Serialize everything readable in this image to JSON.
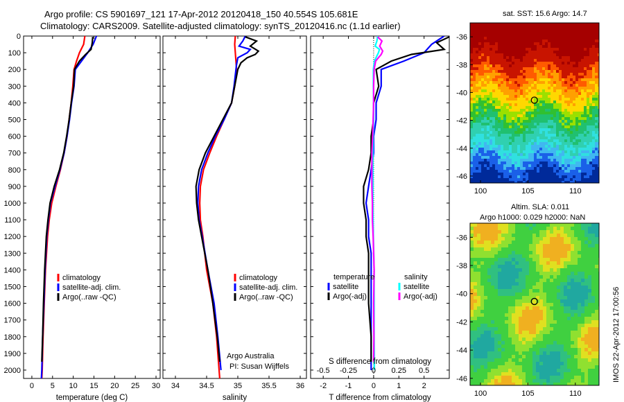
{
  "title_line1": "Argo profile: CS 5901697_121 17-Apr-2012 20120418_150 40.554S 105.681E",
  "title_line2": "Climatology: CARS2009. Satellite-adjusted climatology: synTS_20120416.nc (1.1d earlier)",
  "side_stamp": "IMOS 22-Apr-2012 17:00:56",
  "colors": {
    "climatology": "#ff0000",
    "satellite": "#0000ff",
    "argo": "#000000",
    "sal_satellite": "#00ffff",
    "sal_argo": "#ff00ff"
  },
  "chart_data": [
    {
      "type": "line",
      "name": "temperature",
      "xlabel": "temperature (deg C)",
      "ylabel": "",
      "xlim": [
        -2,
        31
      ],
      "ylim": [
        0,
        2050
      ],
      "y_reversed": true,
      "xticks": [
        0,
        5,
        10,
        15,
        20,
        25,
        30
      ],
      "yticks": [
        0,
        100,
        200,
        300,
        400,
        500,
        600,
        700,
        800,
        900,
        1000,
        1100,
        1200,
        1300,
        1400,
        1500,
        1600,
        1700,
        1800,
        1900,
        2000
      ],
      "legend": [
        "climatology",
        "satellite-adj. clim.",
        "Argo(..raw -QC)"
      ],
      "series": [
        {
          "key": "climatology",
          "depth": [
            0,
            50,
            100,
            150,
            200,
            300,
            400,
            500,
            600,
            700,
            800,
            900,
            1000,
            1100,
            1200,
            1400,
            1600,
            1800,
            2000,
            2050
          ],
          "values": [
            12.8,
            12.5,
            11.5,
            10.8,
            10.2,
            9.9,
            9.5,
            9.0,
            8.5,
            7.8,
            6.9,
            5.8,
            4.8,
            4.2,
            3.8,
            3.3,
            3.0,
            2.7,
            2.5,
            2.4
          ]
        },
        {
          "key": "satellite",
          "depth": [
            0,
            50,
            100,
            150,
            200,
            300,
            400,
            500,
            600,
            700,
            800,
            900,
            1000,
            1100,
            1200,
            1400,
            1600,
            1800,
            2000,
            2050
          ],
          "values": [
            15.6,
            14.8,
            13.5,
            12.0,
            10.5,
            10.2,
            9.6,
            9.1,
            8.5,
            7.8,
            6.8,
            5.6,
            4.5,
            4.0,
            3.6,
            3.2,
            2.9,
            2.6,
            2.4,
            2.3
          ]
        },
        {
          "key": "argo",
          "depth": [
            5,
            40,
            80,
            110,
            150,
            200,
            300,
            400,
            500,
            600,
            700,
            800,
            900,
            1000,
            1100,
            1200,
            1400,
            1600,
            1800,
            1950
          ],
          "values": [
            14.7,
            14.6,
            14.3,
            13.0,
            11.5,
            10.3,
            10.1,
            9.5,
            9.0,
            8.4,
            7.7,
            6.7,
            5.4,
            4.4,
            3.9,
            3.5,
            3.1,
            2.8,
            2.6,
            2.4
          ]
        }
      ]
    },
    {
      "type": "line",
      "name": "salinity",
      "xlabel": "salinity",
      "ylabel": "",
      "xlim": [
        33.8,
        36.1
      ],
      "ylim": [
        0,
        2050
      ],
      "y_reversed": true,
      "xticks": [
        34,
        34.5,
        35,
        35.5,
        36
      ],
      "legend": [
        "climatology",
        "satellite-adj. clim.",
        "Argo(..raw -QC)"
      ],
      "annotation": [
        "Argo Australia",
        "PI: Susan Wijffels"
      ],
      "series": [
        {
          "key": "climatology",
          "depth": [
            0,
            50,
            100,
            150,
            200,
            300,
            400,
            500,
            600,
            700,
            800,
            900,
            1000,
            1100,
            1200,
            1400,
            1600,
            1800,
            2000,
            2050
          ],
          "values": [
            34.96,
            34.95,
            34.96,
            34.97,
            34.98,
            34.95,
            34.9,
            34.78,
            34.66,
            34.55,
            34.45,
            34.4,
            34.39,
            34.4,
            34.44,
            34.5,
            34.6,
            34.66,
            34.7,
            34.71
          ]
        },
        {
          "key": "satellite",
          "depth": [
            0,
            30,
            60,
            80,
            100,
            130,
            170,
            200,
            300,
            400,
            500,
            600,
            700,
            800,
            900,
            1000,
            1100,
            1200,
            1400,
            1600,
            1800,
            2000
          ],
          "values": [
            35.12,
            35.08,
            35.02,
            35.2,
            35.15,
            35.0,
            34.98,
            34.97,
            34.94,
            34.9,
            34.78,
            34.64,
            34.52,
            34.42,
            34.37,
            34.36,
            34.38,
            34.43,
            34.52,
            34.62,
            34.68,
            34.73
          ]
        },
        {
          "key": "argo",
          "depth": [
            5,
            30,
            60,
            90,
            110,
            130,
            160,
            200,
            300,
            400,
            500,
            600,
            700,
            800,
            900,
            1000,
            1100,
            1200,
            1400,
            1600,
            1800,
            1950
          ],
          "values": [
            35.12,
            35.3,
            35.2,
            35.33,
            35.28,
            35.15,
            35.05,
            35.0,
            34.95,
            34.9,
            34.76,
            34.62,
            34.48,
            34.38,
            34.33,
            34.34,
            34.37,
            34.42,
            34.52,
            34.6,
            34.67,
            34.71
          ]
        }
      ]
    },
    {
      "type": "line",
      "name": "difference",
      "xlabel": "T difference from climatology",
      "xlabel_top": "S difference from climatology",
      "xlim": [
        -2.5,
        3.0
      ],
      "ylim": [
        0,
        2050
      ],
      "y_reversed": true,
      "xticks": [
        -2,
        -1,
        0,
        1,
        2
      ],
      "xticks_top": [
        "-0.5",
        "-0.25",
        "0",
        "0.25",
        "0.5"
      ],
      "legend_titles": [
        "temperature",
        "salinity"
      ],
      "legend": [
        "satellite",
        "Argo(-adj)",
        "satellite",
        "Argo(-adj)"
      ],
      "series": [
        {
          "key": "t_satellite",
          "depth": [
            0,
            50,
            100,
            150,
            200,
            300,
            400,
            500,
            600,
            700,
            800,
            900,
            1000,
            1100,
            1200,
            1300,
            1400,
            1600,
            1800,
            2000
          ],
          "values": [
            2.8,
            2.3,
            2.0,
            1.2,
            0.3,
            0.3,
            0.1,
            0.1,
            0.0,
            0.0,
            -0.1,
            -0.2,
            -0.3,
            -0.2,
            -0.2,
            -0.1,
            -0.1,
            -0.1,
            -0.1,
            -0.1
          ]
        },
        {
          "key": "t_argo",
          "depth": [
            5,
            40,
            80,
            110,
            150,
            200,
            300,
            400,
            500,
            600,
            700,
            800,
            900,
            1000,
            1100,
            1200,
            1300,
            1400,
            1600,
            1800,
            1950
          ],
          "values": [
            3.0,
            2.5,
            2.8,
            1.5,
            0.7,
            0.1,
            0.2,
            0.0,
            0.0,
            -0.1,
            -0.1,
            -0.2,
            -0.4,
            -0.4,
            -0.3,
            -0.3,
            -0.2,
            -0.2,
            -0.2,
            -0.1,
            -0.1
          ]
        },
        {
          "key": "s_satellite",
          "depth": [
            0,
            30,
            60,
            80,
            100,
            150,
            200,
            300,
            400,
            500,
            600,
            700,
            800,
            900,
            1000,
            1200,
            1400,
            1600,
            1800,
            2000
          ],
          "values": [
            0.16,
            0.13,
            0.06,
            0.23,
            0.19,
            0.03,
            -0.01,
            -0.01,
            0.0,
            0.0,
            -0.02,
            -0.03,
            -0.03,
            -0.03,
            -0.03,
            -0.01,
            0.02,
            0.02,
            0.02,
            0.03
          ]
        },
        {
          "key": "s_argo",
          "depth": [
            5,
            30,
            60,
            90,
            110,
            150,
            200,
            300,
            400,
            500,
            600,
            700,
            800,
            900,
            1000,
            1100,
            1200,
            1300,
            1400,
            1600,
            1800,
            1950
          ],
          "values": [
            0.16,
            0.33,
            0.24,
            0.36,
            0.3,
            0.08,
            0.02,
            0.0,
            0.0,
            -0.02,
            -0.04,
            -0.07,
            -0.07,
            -0.07,
            -0.05,
            -0.05,
            -0.02,
            0.0,
            0.02,
            0.0,
            0.01,
            0.0
          ]
        }
      ]
    },
    {
      "type": "heatmap",
      "name": "sst-map",
      "title": "sat. SST: 15.6 Argo: 14.7",
      "xlim": [
        98.9,
        112.5
      ],
      "ylim": [
        -46.5,
        -35.0
      ],
      "xticks": [
        100,
        105,
        110
      ],
      "yticks": [
        -36,
        -38,
        -40,
        -42,
        -44,
        -46
      ],
      "marker": {
        "lon": 105.68,
        "lat": -40.55
      }
    },
    {
      "type": "heatmap",
      "name": "sla-map",
      "title_lines": [
        "Altim. SLA: 0.011",
        "Argo h1000: 0.029 h2000: NaN"
      ],
      "xlim": [
        98.9,
        112.5
      ],
      "ylim": [
        -46.5,
        -35.0
      ],
      "xticks": [
        100,
        105,
        110
      ],
      "yticks": [
        -36,
        -38,
        -40,
        -42,
        -44,
        -46
      ],
      "marker": {
        "lon": 105.68,
        "lat": -40.55
      }
    }
  ]
}
